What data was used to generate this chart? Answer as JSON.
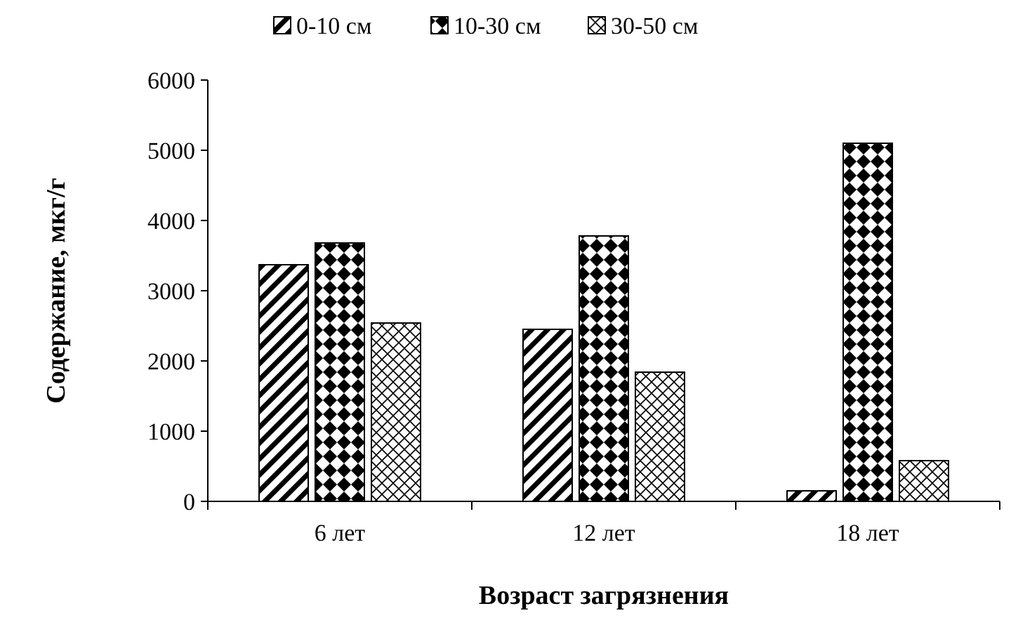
{
  "chart_data": {
    "type": "bar",
    "xlabel": "Возраст загрязнения",
    "ylabel": "Содержание, мкг/г",
    "categories": [
      "6 лет",
      "12 лет",
      "18 лет"
    ],
    "series": [
      {
        "name": "0-10 см",
        "color": "#000000",
        "values": [
          3370,
          2450,
          150
        ]
      },
      {
        "name": "10-30 см",
        "color": "#000000",
        "values": [
          3680,
          3780,
          5100
        ]
      },
      {
        "name": "30-50 см",
        "color": "#000000",
        "values": [
          2540,
          1840,
          580
        ]
      }
    ],
    "ylim": [
      0,
      6000
    ],
    "yticks": [
      0,
      1000,
      2000,
      3000,
      4000,
      5000,
      6000
    ],
    "grid": false,
    "legend": "top"
  }
}
